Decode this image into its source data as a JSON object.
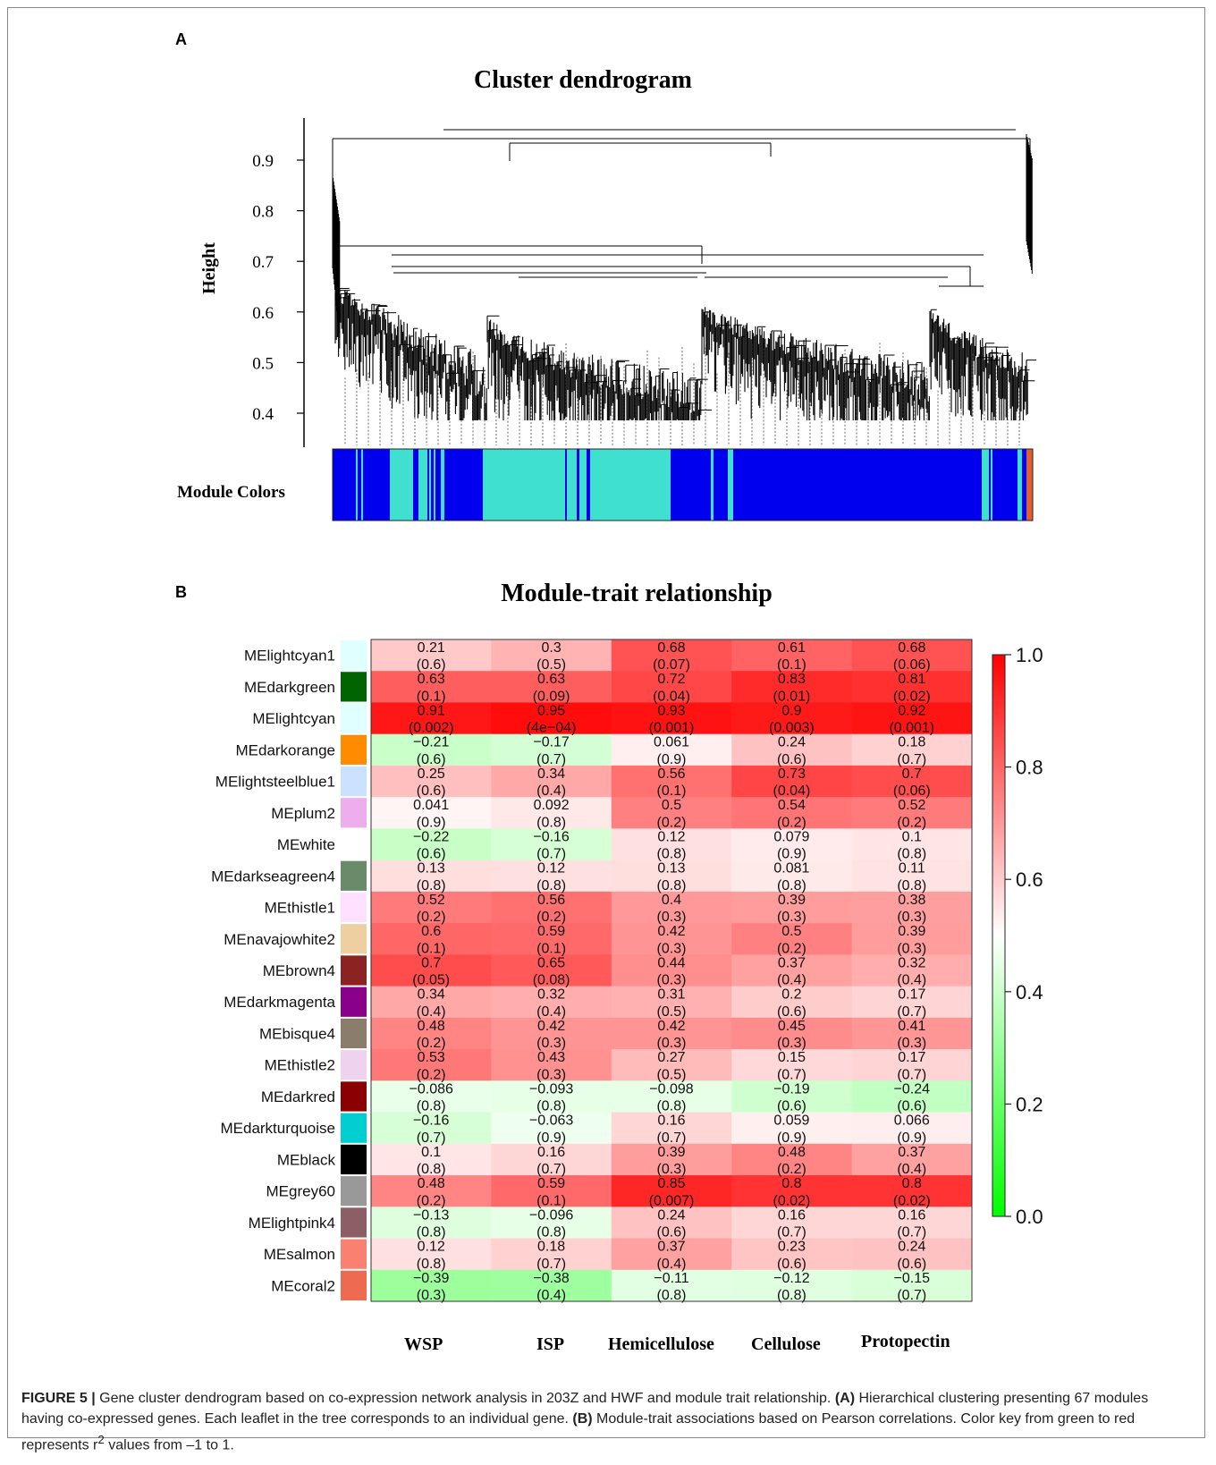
{
  "panel_a": {
    "letter": "A",
    "title": "Cluster dendrogram",
    "ylabel": "Height",
    "yticks": [
      "0.9",
      "0.8",
      "0.7",
      "0.6",
      "0.5",
      "0.4"
    ],
    "yvalues": [
      0.9,
      0.8,
      0.7,
      0.6,
      0.5,
      0.4
    ],
    "module_colors_label": "Module Colors",
    "colors": {
      "blue": "#0000ee",
      "turquoise": "#40e0d0",
      "orange": "#e06030"
    }
  },
  "panel_b": {
    "letter": "B",
    "title": "Module-trait relationship",
    "colorbar_ticks": [
      "1.0",
      "0.8",
      "0.6",
      "0.4",
      "0.2",
      "0.0"
    ]
  },
  "chart_data": {
    "type": "heatmap",
    "title": "Module-trait relationship",
    "x": [
      "WSP",
      "ISP",
      "Hemicellulose",
      "Cellulose",
      "Protopectin"
    ],
    "y": [
      "MElightcyan1",
      "MEdarkgreen",
      "MElightcyan",
      "MEdarkorange",
      "MElightsteelblue1",
      "MEplum2",
      "MEwhite",
      "MEdarkseagreen4",
      "MEthistle1",
      "MEnavajowhite2",
      "MEbrown4",
      "MEdarkmagenta",
      "MEbisque4",
      "MEthistle2",
      "MEdarkred",
      "MEdarkturquoise",
      "MEblack",
      "MEgrey60",
      "MElightpink4",
      "MEsalmon",
      "MEcoral2"
    ],
    "module_colors": [
      "#e0ffff",
      "#006400",
      "#e0ffff",
      "#ff8c00",
      "#cae1ff",
      "#eeaeee",
      "#ffffff",
      "#698b69",
      "#ffe1ff",
      "#eecfa1",
      "#8b2323",
      "#8b008b",
      "#8b7d6b",
      "#eed2ee",
      "#8b0000",
      "#00ced1",
      "#000000",
      "#999999",
      "#8b5f65",
      "#fa8072",
      "#ee6a50"
    ],
    "values": [
      [
        0.21,
        0.3,
        0.68,
        0.61,
        0.68
      ],
      [
        0.63,
        0.63,
        0.72,
        0.83,
        0.81
      ],
      [
        0.91,
        0.95,
        0.93,
        0.9,
        0.92
      ],
      [
        -0.21,
        -0.17,
        0.061,
        0.24,
        0.18
      ],
      [
        0.25,
        0.34,
        0.56,
        0.73,
        0.7
      ],
      [
        0.041,
        0.092,
        0.5,
        0.54,
        0.52
      ],
      [
        -0.22,
        -0.16,
        0.12,
        0.079,
        0.1
      ],
      [
        0.13,
        0.12,
        0.13,
        0.081,
        0.11
      ],
      [
        0.52,
        0.56,
        0.4,
        0.39,
        0.38
      ],
      [
        0.6,
        0.59,
        0.42,
        0.5,
        0.39
      ],
      [
        0.7,
        0.65,
        0.44,
        0.37,
        0.32
      ],
      [
        0.34,
        0.32,
        0.31,
        0.2,
        0.17
      ],
      [
        0.48,
        0.42,
        0.42,
        0.45,
        0.41
      ],
      [
        0.53,
        0.43,
        0.27,
        0.15,
        0.17
      ],
      [
        -0.086,
        -0.093,
        -0.098,
        -0.19,
        -0.24
      ],
      [
        -0.16,
        -0.063,
        0.16,
        0.059,
        0.066
      ],
      [
        0.1,
        0.16,
        0.39,
        0.48,
        0.37
      ],
      [
        0.48,
        0.59,
        0.85,
        0.8,
        0.8
      ],
      [
        -0.13,
        -0.096,
        0.24,
        0.16,
        0.16
      ],
      [
        0.12,
        0.18,
        0.37,
        0.23,
        0.24
      ],
      [
        -0.39,
        -0.38,
        -0.11,
        -0.12,
        -0.15
      ]
    ],
    "labels": [
      [
        "0.21",
        "0.3",
        "0.68",
        "0.61",
        "0.68"
      ],
      [
        "0.63",
        "0.63",
        "0.72",
        "0.83",
        "0.81"
      ],
      [
        "0.91",
        "0.95",
        "0.93",
        "0.9",
        "0.92"
      ],
      [
        "−0.21",
        "−0.17",
        "0.061",
        "0.24",
        "0.18"
      ],
      [
        "0.25",
        "0.34",
        "0.56",
        "0.73",
        "0.7"
      ],
      [
        "0.041",
        "0.092",
        "0.5",
        "0.54",
        "0.52"
      ],
      [
        "−0.22",
        "−0.16",
        "0.12",
        "0.079",
        "0.1"
      ],
      [
        "0.13",
        "0.12",
        "0.13",
        "0.081",
        "0.11"
      ],
      [
        "0.52",
        "0.56",
        "0.4",
        "0.39",
        "0.38"
      ],
      [
        "0.6",
        "0.59",
        "0.42",
        "0.5",
        "0.39"
      ],
      [
        "0.7",
        "0.65",
        "0.44",
        "0.37",
        "0.32"
      ],
      [
        "0.34",
        "0.32",
        "0.31",
        "0.2",
        "0.17"
      ],
      [
        "0.48",
        "0.42",
        "0.42",
        "0.45",
        "0.41"
      ],
      [
        "0.53",
        "0.43",
        "0.27",
        "0.15",
        "0.17"
      ],
      [
        "−0.086",
        "−0.093",
        "−0.098",
        "−0.19",
        "−0.24"
      ],
      [
        "−0.16",
        "−0.063",
        "0.16",
        "0.059",
        "0.066"
      ],
      [
        "0.1",
        "0.16",
        "0.39",
        "0.48",
        "0.37"
      ],
      [
        "0.48",
        "0.59",
        "0.85",
        "0.8",
        "0.8"
      ],
      [
        "−0.13",
        "−0.096",
        "0.24",
        "0.16",
        "0.16"
      ],
      [
        "0.12",
        "0.18",
        "0.37",
        "0.23",
        "0.24"
      ],
      [
        "−0.39",
        "−0.38",
        "−0.11",
        "−0.12",
        "−0.15"
      ]
    ],
    "pvalues": [
      [
        "(0.6)",
        "(0.5)",
        "(0.07)",
        "(0.1)",
        "(0.06)"
      ],
      [
        "(0.1)",
        "(0.09)",
        "(0.04)",
        "(0.01)",
        "(0.02)"
      ],
      [
        "(0.002)",
        "(4e−04)",
        "(0.001)",
        "(0.003)",
        "(0.001)"
      ],
      [
        "(0.6)",
        "(0.7)",
        "(0.9)",
        "(0.6)",
        "(0.7)"
      ],
      [
        "(0.6)",
        "(0.4)",
        "(0.1)",
        "(0.04)",
        "(0.06)"
      ],
      [
        "(0.9)",
        "(0.8)",
        "(0.2)",
        "(0.2)",
        "(0.2)"
      ],
      [
        "(0.6)",
        "(0.7)",
        "(0.8)",
        "(0.9)",
        "(0.8)"
      ],
      [
        "(0.8)",
        "(0.8)",
        "(0.8)",
        "(0.8)",
        "(0.8)"
      ],
      [
        "(0.2)",
        "(0.2)",
        "(0.3)",
        "(0.3)",
        "(0.3)"
      ],
      [
        "(0.1)",
        "(0.1)",
        "(0.3)",
        "(0.2)",
        "(0.3)"
      ],
      [
        "(0.05)",
        "(0.08)",
        "(0.3)",
        "(0.4)",
        "(0.4)"
      ],
      [
        "(0.4)",
        "(0.4)",
        "(0.5)",
        "(0.6)",
        "(0.7)"
      ],
      [
        "(0.2)",
        "(0.3)",
        "(0.3)",
        "(0.3)",
        "(0.3)"
      ],
      [
        "(0.2)",
        "(0.3)",
        "(0.5)",
        "(0.7)",
        "(0.7)"
      ],
      [
        "(0.8)",
        "(0.8)",
        "(0.8)",
        "(0.6)",
        "(0.6)"
      ],
      [
        "(0.7)",
        "(0.9)",
        "(0.7)",
        "(0.9)",
        "(0.9)"
      ],
      [
        "(0.8)",
        "(0.7)",
        "(0.3)",
        "(0.2)",
        "(0.4)"
      ],
      [
        "(0.2)",
        "(0.1)",
        "(0.007)",
        "(0.02)",
        "(0.02)"
      ],
      [
        "(0.8)",
        "(0.8)",
        "(0.6)",
        "(0.7)",
        "(0.7)"
      ],
      [
        "(0.8)",
        "(0.7)",
        "(0.4)",
        "(0.6)",
        "(0.6)"
      ],
      [
        "(0.3)",
        "(0.4)",
        "(0.8)",
        "(0.8)",
        "(0.7)"
      ]
    ],
    "colorbar": {
      "range": [
        0.0,
        1.0
      ],
      "low": "#00ff00",
      "mid": "#ffffff",
      "high": "#ff0000"
    }
  },
  "caption": {
    "label": "FIGURE 5 |",
    "part1": " Gene cluster dendrogram based on co-expression network analysis in 203Z and HWF and module trait relationship. ",
    "a_label": "(A)",
    "part2": " Hierarchical clustering presenting 67 modules having co-expressed genes. Each leaflet in the tree corresponds to an individual gene. ",
    "b_label": "(B)",
    "part3": " Module-trait associations based on Pearson correlations. Color key from green to red represents r",
    "sup": "2",
    "part4": " values from –1 to 1."
  }
}
